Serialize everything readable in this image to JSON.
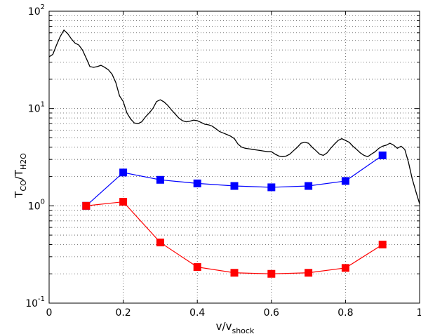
{
  "chart_data": {
    "type": "line",
    "x_axis": {
      "label_main": "v/v",
      "label_sub": "shock",
      "range": [
        0,
        1
      ],
      "ticks": [
        0,
        0.2,
        0.4,
        0.6,
        0.8,
        1
      ],
      "tick_labels": [
        "0",
        "0.2",
        "0.4",
        "0.6",
        "0.8",
        "1"
      ]
    },
    "y_axis": {
      "scale": "log",
      "range": [
        0.1,
        100
      ],
      "label_parts": [
        {
          "text": "T",
          "sub": false
        },
        {
          "text": "CO",
          "sub": true
        },
        {
          "text": "/T",
          "sub": false
        },
        {
          "text": "H2O",
          "sub": true
        }
      ],
      "decades": [
        {
          "value": 0.1,
          "base": "10",
          "exp": "-1"
        },
        {
          "value": 1,
          "base": "10",
          "exp": "0"
        },
        {
          "value": 10,
          "base": "10",
          "exp": "1"
        },
        {
          "value": 100,
          "base": "10",
          "exp": "2"
        }
      ]
    },
    "grid": true,
    "series": [
      {
        "color": "#000000",
        "marker": "none",
        "x": [
          0.0,
          0.01,
          0.02,
          0.03,
          0.04,
          0.05,
          0.06,
          0.07,
          0.08,
          0.09,
          0.1,
          0.11,
          0.12,
          0.13,
          0.14,
          0.15,
          0.16,
          0.17,
          0.18,
          0.19,
          0.2,
          0.21,
          0.22,
          0.23,
          0.24,
          0.25,
          0.26,
          0.27,
          0.28,
          0.29,
          0.3,
          0.31,
          0.32,
          0.33,
          0.34,
          0.35,
          0.36,
          0.37,
          0.38,
          0.39,
          0.4,
          0.41,
          0.42,
          0.43,
          0.44,
          0.45,
          0.46,
          0.47,
          0.48,
          0.49,
          0.5,
          0.51,
          0.52,
          0.53,
          0.54,
          0.55,
          0.56,
          0.57,
          0.58,
          0.59,
          0.6,
          0.61,
          0.62,
          0.63,
          0.64,
          0.65,
          0.66,
          0.67,
          0.68,
          0.69,
          0.7,
          0.71,
          0.72,
          0.73,
          0.74,
          0.75,
          0.76,
          0.77,
          0.78,
          0.79,
          0.8,
          0.81,
          0.82,
          0.83,
          0.84,
          0.85,
          0.86,
          0.87,
          0.88,
          0.89,
          0.9,
          0.91,
          0.92,
          0.93,
          0.94,
          0.95,
          0.96,
          0.97,
          0.98,
          0.99,
          1.0
        ],
        "y": [
          34,
          36,
          45,
          55,
          64,
          59,
          52,
          47,
          45,
          40,
          33,
          27,
          26.5,
          27,
          27.8,
          26.5,
          25,
          22.5,
          18.5,
          13.5,
          11.8,
          9.0,
          7.8,
          7.1,
          7.0,
          7.3,
          8.2,
          9.0,
          10.0,
          11.8,
          12.3,
          11.7,
          10.8,
          9.7,
          8.8,
          8.0,
          7.5,
          7.3,
          7.4,
          7.6,
          7.5,
          7.2,
          6.9,
          6.8,
          6.6,
          6.2,
          5.8,
          5.6,
          5.4,
          5.2,
          4.9,
          4.3,
          4.0,
          3.9,
          3.85,
          3.8,
          3.75,
          3.7,
          3.65,
          3.6,
          3.6,
          3.4,
          3.25,
          3.2,
          3.25,
          3.4,
          3.7,
          4.0,
          4.4,
          4.5,
          4.4,
          4.0,
          3.7,
          3.4,
          3.3,
          3.5,
          3.9,
          4.3,
          4.7,
          4.9,
          4.7,
          4.5,
          4.1,
          3.8,
          3.5,
          3.3,
          3.2,
          3.4,
          3.6,
          3.9,
          4.1,
          4.2,
          4.4,
          4.2,
          3.9,
          4.1,
          3.8,
          2.8,
          1.9,
          1.4,
          1.05
        ]
      },
      {
        "color": "#0000ff",
        "marker": "square",
        "x": [
          0.1,
          0.2,
          0.3,
          0.4,
          0.5,
          0.6,
          0.7,
          0.8,
          0.9
        ],
        "y": [
          1.0,
          2.2,
          1.85,
          1.7,
          1.6,
          1.55,
          1.6,
          1.8,
          3.3
        ]
      },
      {
        "color": "#ff0000",
        "marker": "square",
        "x": [
          0.1,
          0.2,
          0.3,
          0.4,
          0.5,
          0.6,
          0.7,
          0.8,
          0.9
        ],
        "y": [
          1.0,
          1.1,
          0.42,
          0.235,
          0.205,
          0.2,
          0.205,
          0.23,
          0.4
        ]
      }
    ]
  }
}
